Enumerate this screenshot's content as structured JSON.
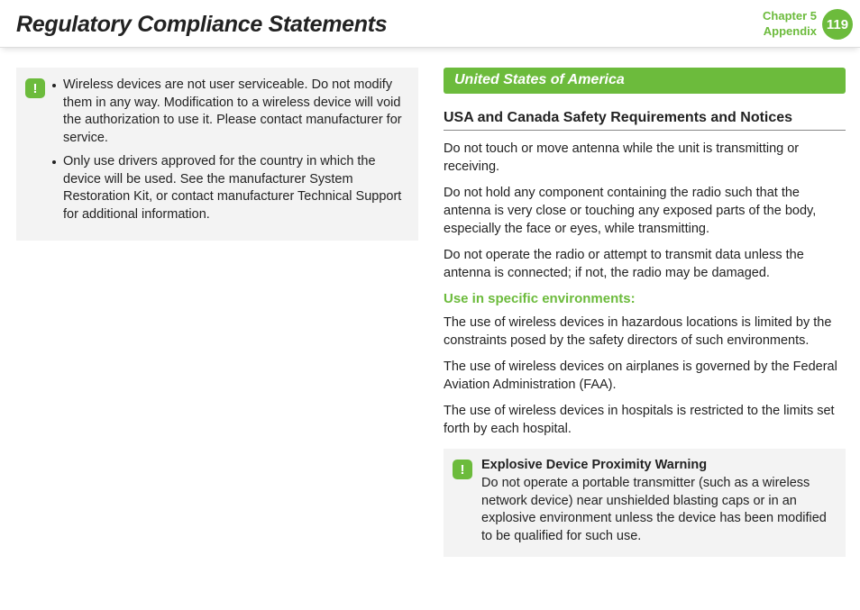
{
  "header": {
    "title": "Regulatory Compliance Statements",
    "chapter_line1": "Chapter 5",
    "chapter_line2": "Appendix",
    "page_number": "119"
  },
  "left_box": {
    "bullets": [
      "Wireless devices are not user serviceable. Do not modify them in any way. Modification to a wireless device will void the authorization to use it. Please contact manufacturer for service.",
      "Only use drivers approved for the country in which the device will be used. See the manufacturer System Restoration Kit, or contact manufacturer Technical Support for additional information."
    ]
  },
  "right": {
    "section_title": "United States of America",
    "subheading": "USA and Canada Safety Requirements and Notices",
    "paras": [
      "Do not touch or move antenna while the unit is transmitting or receiving.",
      "Do not hold any component containing the radio such that the antenna is very close or touching any exposed parts of the body, especially the face or eyes, while transmitting.",
      "Do not operate the radio or attempt to transmit data unless the antenna is connected; if not, the radio may be damaged."
    ],
    "env_heading": "Use in specific environments:",
    "env_paras": [
      "The use of wireless devices in hazardous locations is limited by the constraints posed by the safety directors of such environments.",
      "The use of wireless devices on airplanes is governed by the Federal Aviation Administration (FAA).",
      "The use of wireless devices in hospitals is restricted to the limits set forth by each hospital."
    ],
    "warning": {
      "title": "Explosive Device Proximity Warning",
      "text": "Do not operate a portable transmitter (such as a wireless network device) near unshielded blasting caps or in an explosive environment unless the device has been modified to be qualified for such use."
    }
  },
  "colors": {
    "accent": "#6cbb3c",
    "box_bg": "#f3f3f3",
    "text": "#222222"
  }
}
